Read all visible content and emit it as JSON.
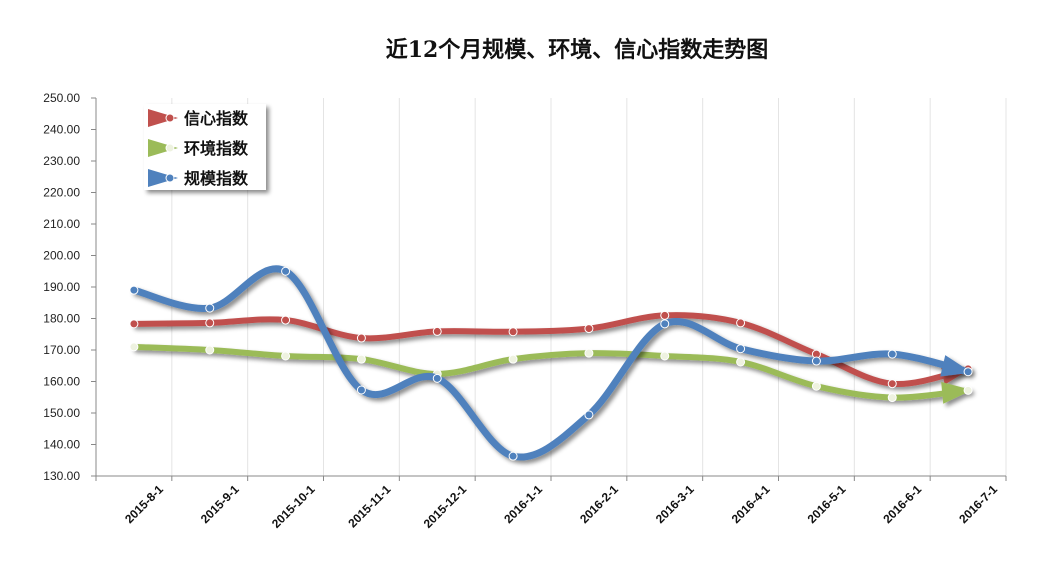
{
  "chart_data": {
    "type": "line",
    "title": "近12个月规模、环境、信心指数走势图",
    "xlabel": "",
    "ylabel": "",
    "ylim": [
      130,
      250
    ],
    "ystep": 10,
    "grid": "vertical",
    "legend_position": "top-left",
    "categories": [
      "2015-8-1",
      "2015-9-1",
      "2015-10-1",
      "2015-11-1",
      "2015-12-1",
      "2016-1-1",
      "2016-2-1",
      "2016-3-1",
      "2016-4-1",
      "2016-5-1",
      "2016-6-1",
      "2016-7-1"
    ],
    "series": [
      {
        "name": "信心指数",
        "color": "#c0504d",
        "values": [
          178.3,
          178.6,
          179.5,
          173.8,
          175.9,
          175.8,
          176.8,
          181.0,
          178.6,
          168.7,
          159.3,
          164.0
        ]
      },
      {
        "name": "环境指数",
        "color": "#9bbb59",
        "values": [
          171.0,
          170.0,
          168.1,
          167.1,
          162.4,
          167.1,
          169.0,
          168.1,
          166.2,
          158.5,
          154.9,
          157.2
        ]
      },
      {
        "name": "规模指数",
        "color": "#4f81bd",
        "values": [
          189.0,
          183.3,
          195.0,
          157.3,
          161.0,
          136.3,
          149.4,
          178.3,
          170.4,
          166.5,
          168.7,
          163.1
        ]
      }
    ]
  }
}
